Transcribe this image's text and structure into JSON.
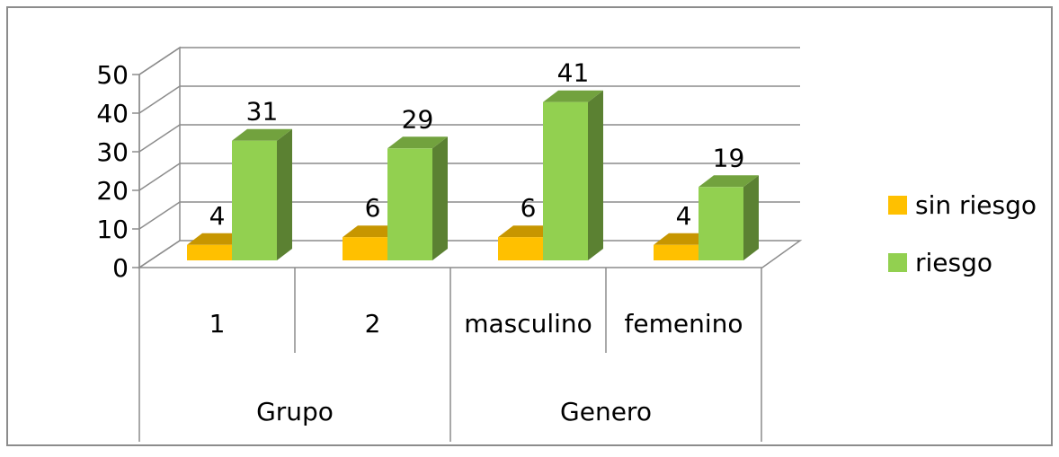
{
  "chart_data": {
    "type": "bar",
    "three_d": true,
    "ylim": [
      0,
      50
    ],
    "yticks": [
      0,
      10,
      20,
      30,
      40,
      50
    ],
    "grid": true,
    "categories": [
      "1",
      "2",
      "masculino",
      "femenino"
    ],
    "groups": [
      {
        "label": "Grupo",
        "categories": [
          "1",
          "2"
        ]
      },
      {
        "label": "Genero",
        "categories": [
          "masculino",
          "femenino"
        ]
      }
    ],
    "series": [
      {
        "name": "sin riesgo",
        "values": [
          4,
          6,
          6,
          4
        ],
        "color": "#ffc000"
      },
      {
        "name": "riesgo",
        "values": [
          31,
          29,
          41,
          19
        ],
        "color": "#92d050"
      }
    ],
    "legend_position": "right"
  }
}
